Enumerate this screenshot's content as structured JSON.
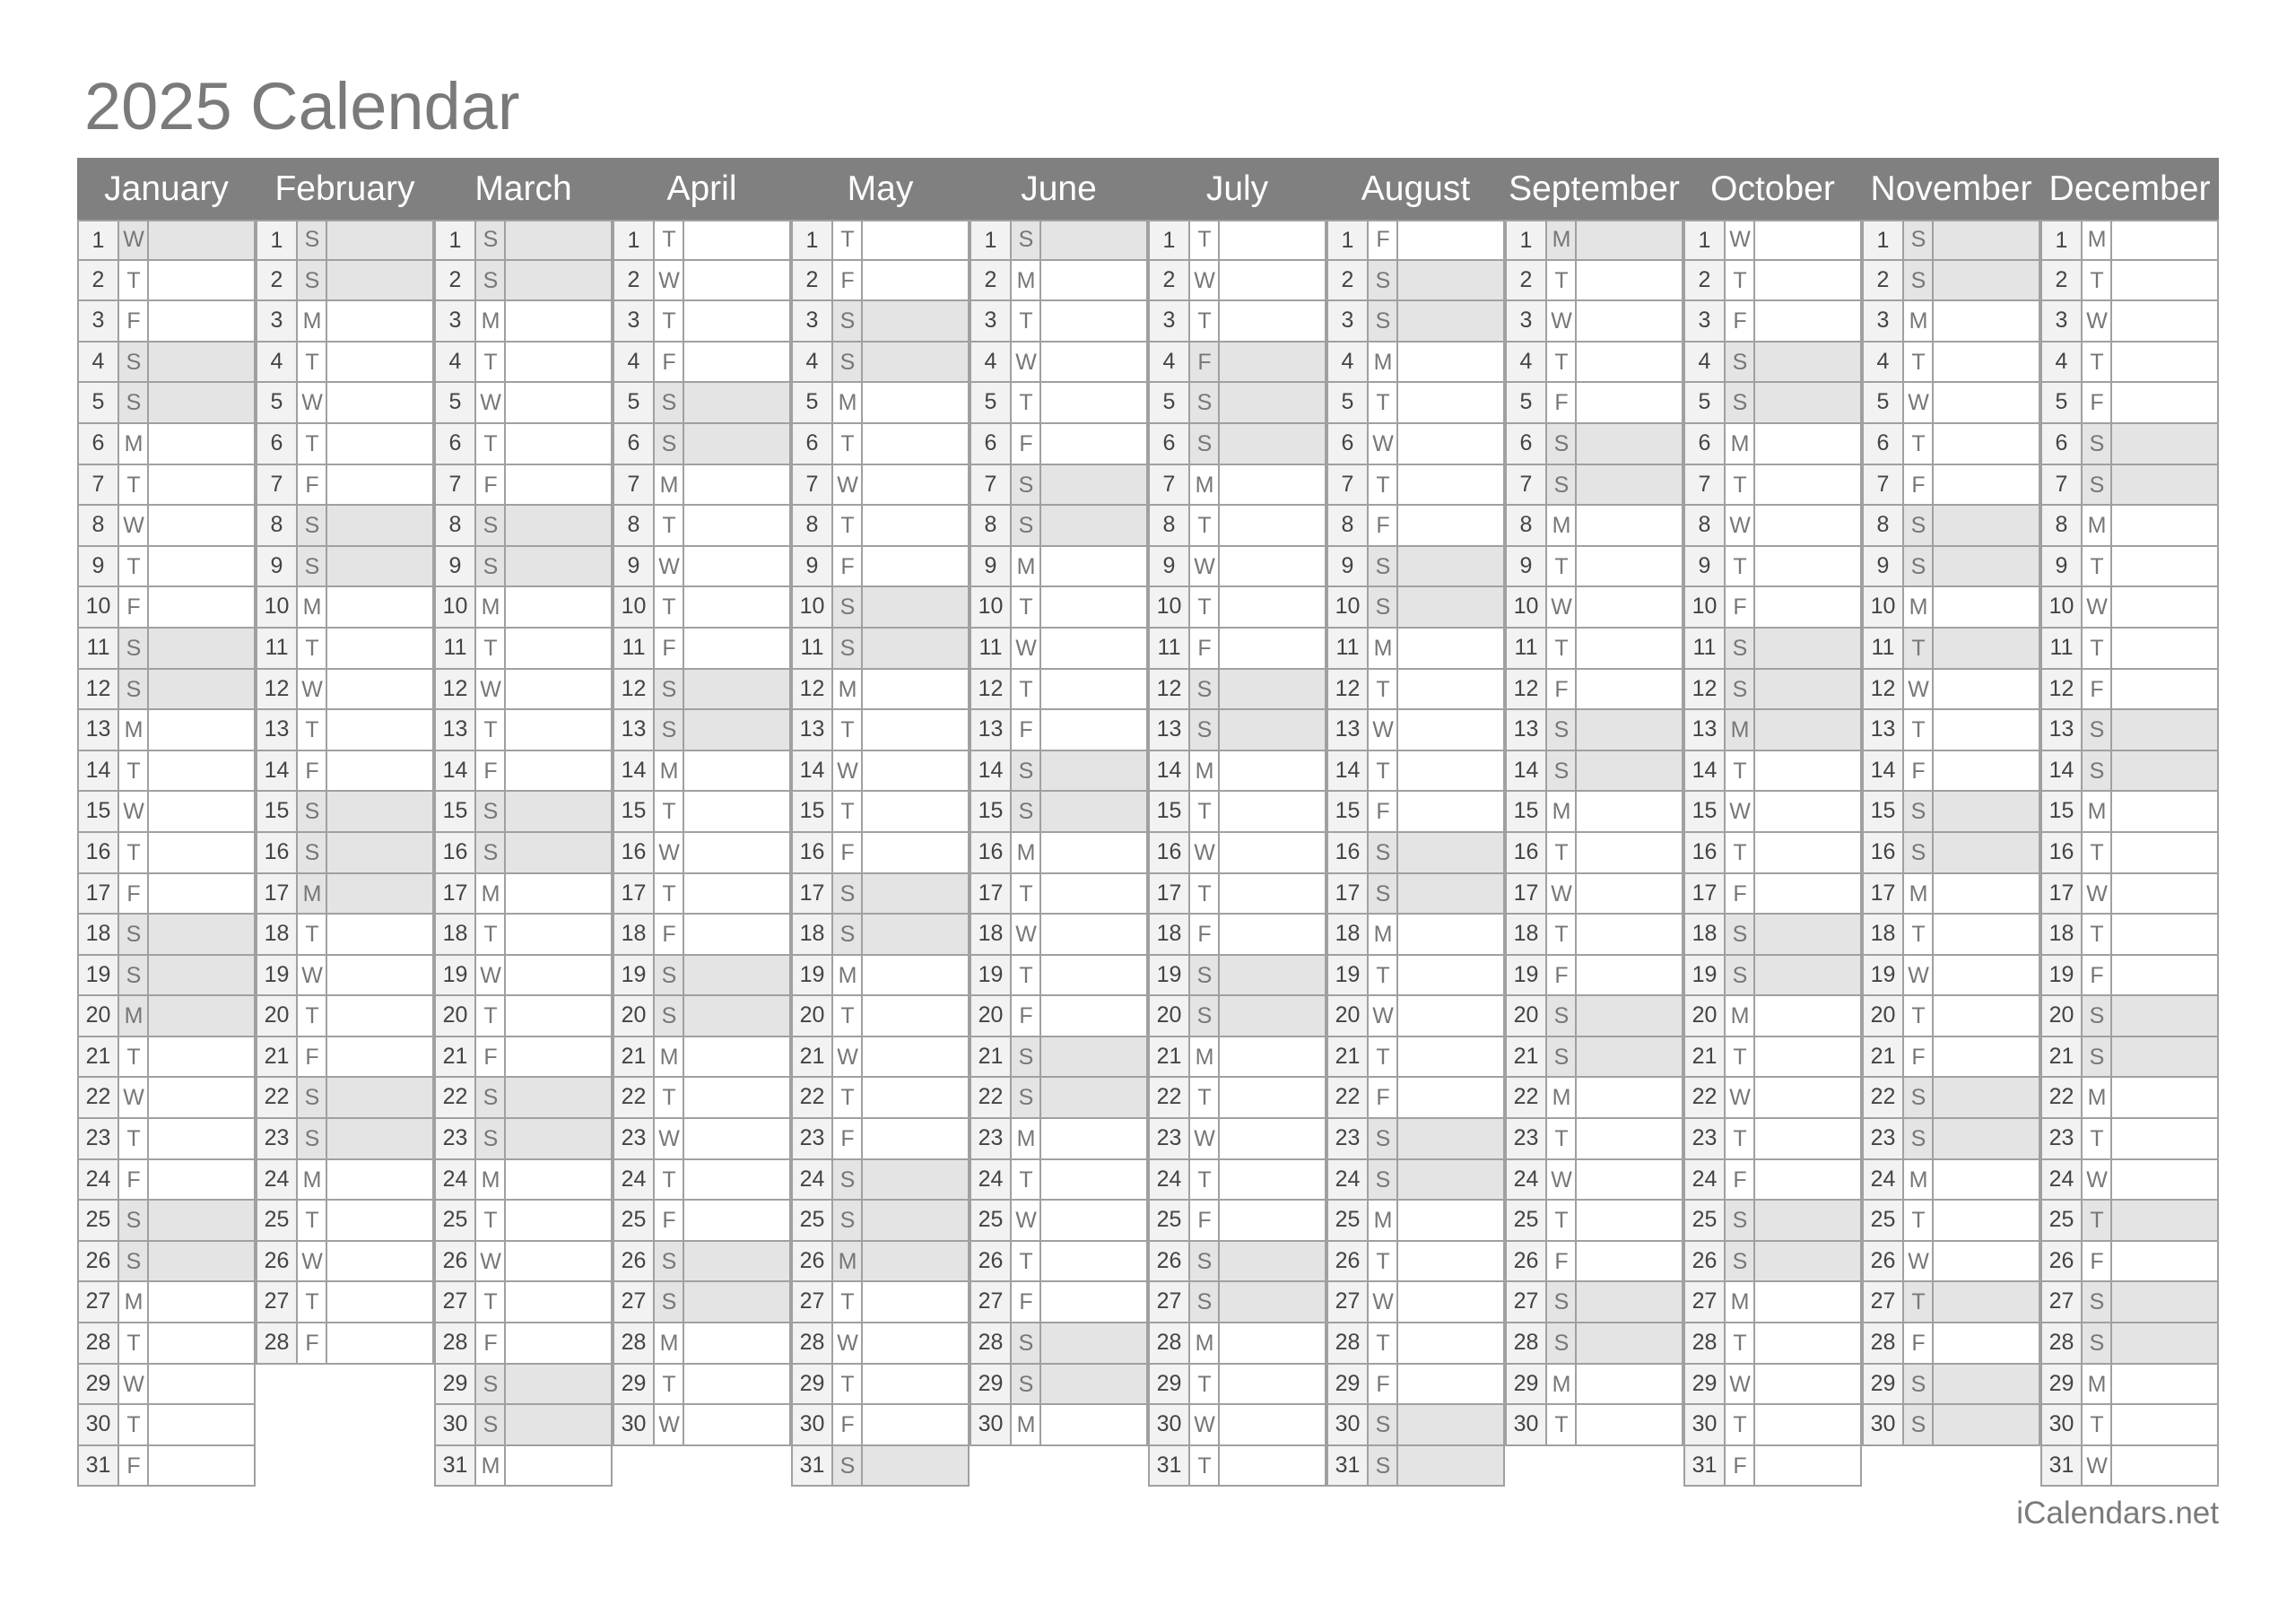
{
  "title": "2025 Calendar",
  "footer": "iCalendars.net",
  "colors": {
    "header_bg": "#808080",
    "shade": "#e4e4e4",
    "day_number_bg": "#f2f2f2"
  },
  "months": [
    {
      "name": "January",
      "weekdays": "WTFSSMTWTFSSMTWTFSSMTWTFSSMTWTF",
      "holidays": [
        1,
        20
      ]
    },
    {
      "name": "February",
      "weekdays": "SSMTWTFSSMTWTFSSMTWTFSSMTWTF",
      "holidays": [
        17
      ]
    },
    {
      "name": "March",
      "weekdays": "SSMTWTFSSMTWTFSSMTWTFSSMTWTFSSM",
      "holidays": []
    },
    {
      "name": "April",
      "weekdays": "TWTFSSMTWTFSSMTWTFSSMTWTFSSMTW",
      "holidays": []
    },
    {
      "name": "May",
      "weekdays": "TFSSMTWTFSSMTWTFSSMTWTFSSMTWTFS",
      "holidays": [
        26
      ]
    },
    {
      "name": "June",
      "weekdays": "SMTWTFSSMTWTFSSMTWTFSSMTWTFSSM",
      "holidays": []
    },
    {
      "name": "July",
      "weekdays": "TWTFSSMTWTFSSMTWTFSSMTWTFSSMTWT",
      "holidays": [
        4
      ]
    },
    {
      "name": "August",
      "weekdays": "FSSMTWTFSSMTWTFSSMTWTFSSMTWTFSS",
      "holidays": []
    },
    {
      "name": "September",
      "weekdays": "MTWTFSSMTWTFSSMTWTFSSMTWTFSSMT",
      "holidays": [
        1
      ]
    },
    {
      "name": "October",
      "weekdays": "WTFSSMTWTFSSMTWTFSSMTWTFSSMTWTF",
      "holidays": [
        13
      ]
    },
    {
      "name": "November",
      "weekdays": "SSMTWTFSSMTWTFSSMTWTFSSMTWTFSS",
      "holidays": [
        11,
        27
      ]
    },
    {
      "name": "December",
      "weekdays": "MTWTFSSMTWTFSSMTWTFSSMTWTFSSMTW",
      "holidays": [
        25
      ]
    }
  ]
}
